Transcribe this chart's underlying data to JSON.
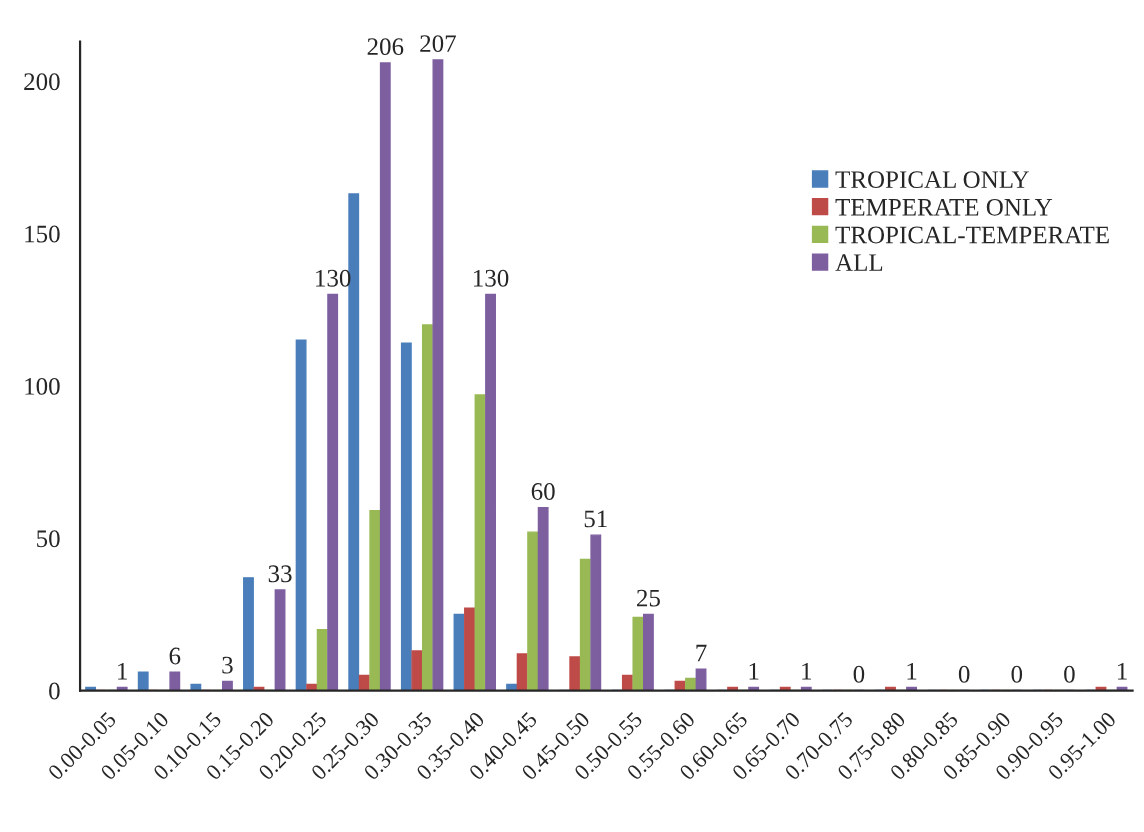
{
  "chart_data": {
    "type": "bar",
    "categories": [
      "0.00-0.05",
      "0.05-0.10",
      "0.10-0.15",
      "0.15-0.20",
      "0.20-0.25",
      "0.25-0.30",
      "0.30-0.35",
      "0.35-0.40",
      "0.40-0.45",
      "0.45-0.50",
      "0.50-0.55",
      "0.55-0.60",
      "0.60-0.65",
      "0.65-0.70",
      "0.70-0.75",
      "0.75-0.80",
      "0.80-0.85",
      "0.85-0.90",
      "0.90-0.95",
      "0.95-1.00"
    ],
    "series": [
      {
        "name": "TROPICAL ONLY",
        "color": "#4a7ebb",
        "values": [
          1,
          6,
          2,
          37,
          115,
          163,
          114,
          25,
          2,
          0,
          0,
          0,
          0,
          0,
          0,
          0,
          0,
          0,
          0,
          0
        ]
      },
      {
        "name": "TEMPERATE ONLY",
        "color": "#be4b48",
        "values": [
          0,
          0,
          0,
          1,
          2,
          5,
          13,
          27,
          12,
          11,
          5,
          3,
          1,
          1,
          0,
          1,
          0,
          0,
          0,
          1
        ]
      },
      {
        "name": "TROPICAL-TEMPERATE",
        "color": "#98b954",
        "values": [
          0,
          0,
          0,
          0,
          20,
          59,
          120,
          97,
          52,
          43,
          24,
          4,
          0,
          0,
          0,
          0,
          0,
          0,
          0,
          0
        ]
      },
      {
        "name": "ALL",
        "color": "#7d5fa0",
        "values": [
          1,
          6,
          3,
          33,
          130,
          206,
          207,
          130,
          60,
          51,
          25,
          7,
          1,
          1,
          0,
          1,
          0,
          0,
          0,
          1
        ],
        "value_labels": [
          "1",
          "6",
          "3",
          "33",
          "130",
          "206",
          "207",
          "130",
          "60",
          "51",
          "25",
          "7",
          "1",
          "1",
          "0",
          "1",
          "0",
          "0",
          "0",
          "1"
        ]
      }
    ],
    "ylim": [
      0,
      213
    ],
    "yticks": [
      0,
      50,
      100,
      150,
      200
    ],
    "grid": false,
    "legend": "right"
  }
}
